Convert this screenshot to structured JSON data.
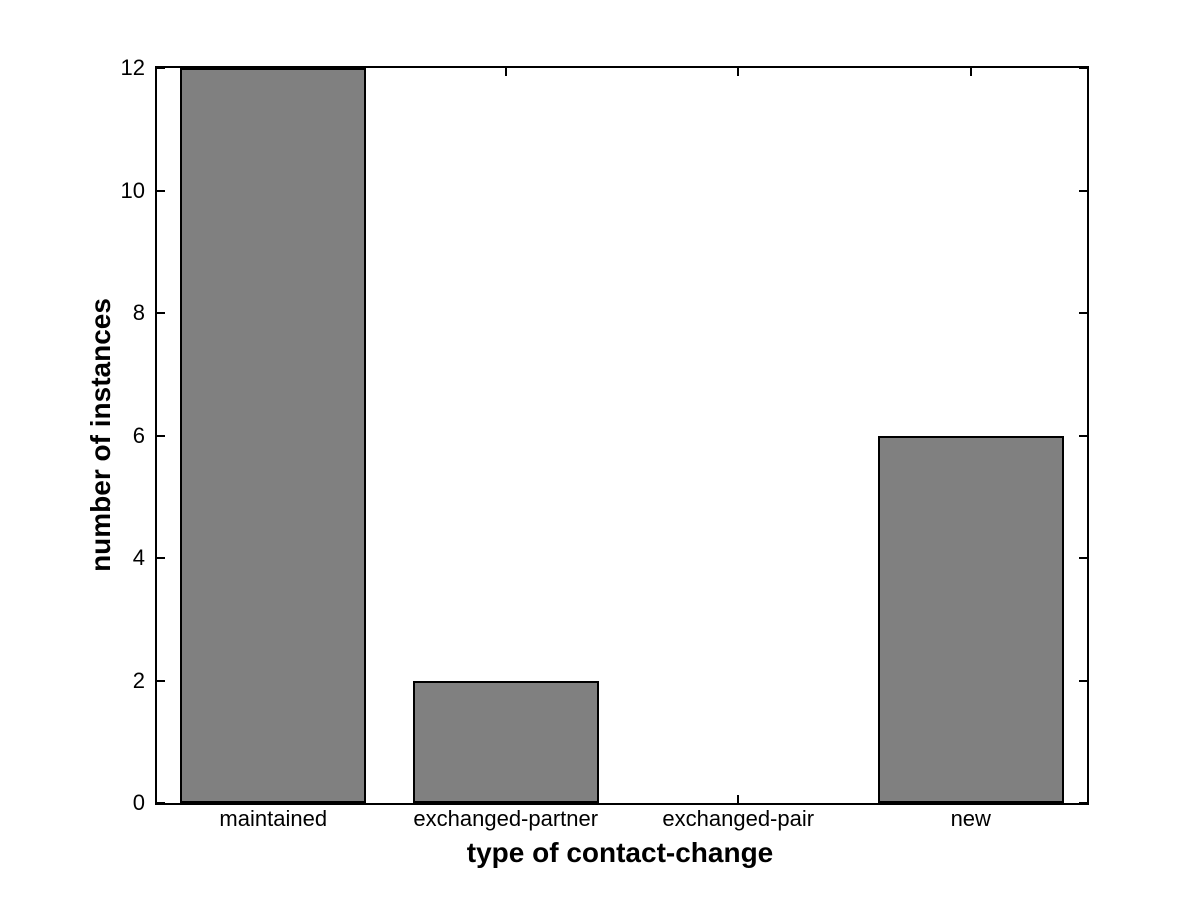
{
  "figure": {
    "background_color": "#ffffff",
    "axis_color": "#000000",
    "text_color": "#000000"
  },
  "chart_data": {
    "type": "bar",
    "title": "",
    "categories": [
      "maintained",
      "exchanged-partner",
      "exchanged-pair",
      "new"
    ],
    "values": [
      12,
      2,
      0,
      6
    ],
    "xlabel": "type of contact-change",
    "ylabel": "number of instances",
    "ylim": [
      0,
      12
    ],
    "yticks": [
      0,
      2,
      4,
      6,
      8,
      10,
      12
    ],
    "ytick_labels": [
      "0",
      "2",
      "4",
      "6",
      "8",
      "10",
      "12"
    ],
    "bar_color": "#808080",
    "bar_edge_color": "#000000",
    "bar_rel_width": 0.8,
    "grid": false,
    "legend": "none",
    "box": "on"
  }
}
